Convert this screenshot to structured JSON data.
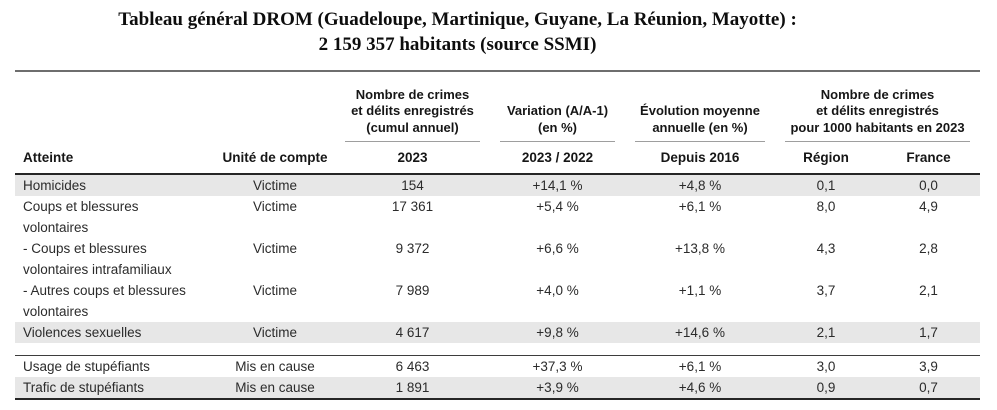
{
  "title": {
    "line1": "Tableau général DROM (Guadeloupe, Martinique, Guyane, La Réunion, Mayotte) :",
    "line2": "2 159 357 habitants (source SSMI)"
  },
  "table": {
    "group_headers": {
      "registered": "Nombre de crimes\net délits enregistrés\n(cumul annuel)",
      "variation": "Variation (A/A-1)\n(en %)",
      "evolution": "Évolution moyenne\nannuelle (en %)",
      "per_1000": "Nombre de crimes\net délits enregistrés\npour 1000 habitants en 2023"
    },
    "columns": {
      "atteinte": "Atteinte",
      "unite": "Unité de compte",
      "year": "2023",
      "variation": "2023 / 2022",
      "evolution": "Depuis 2016",
      "region": "Région",
      "france": "France"
    },
    "rows": [
      {
        "atteinte": "Homicides",
        "unite": "Victime",
        "count_2023": "154",
        "variation": "+14,1 %",
        "evolution": "+4,8 %",
        "region": "0,1",
        "france": "0,0"
      },
      {
        "atteinte": "Coups et blessures volontaires",
        "unite": "Victime",
        "count_2023": "17 361",
        "variation": "+5,4 %",
        "evolution": "+6,1 %",
        "region": "8,0",
        "france": "4,9"
      },
      {
        "atteinte": "- Coups et blessures volontaires intrafamiliaux",
        "unite": "Victime",
        "count_2023": "9 372",
        "variation": "+6,6 %",
        "evolution": "+13,8 %",
        "region": "4,3",
        "france": "2,8"
      },
      {
        "atteinte": "- Autres coups et blessures volontaires",
        "unite": "Victime",
        "count_2023": "7 989",
        "variation": "+4,0 %",
        "evolution": "+1,1 %",
        "region": "3,7",
        "france": "2,1"
      },
      {
        "atteinte": "Violences sexuelles",
        "unite": "Victime",
        "count_2023": "4 617",
        "variation": "+9,8 %",
        "evolution": "+14,6 %",
        "region": "2,1",
        "france": "1,7"
      },
      {
        "atteinte": "Usage de stupéfiants",
        "unite": "Mis en cause",
        "count_2023": "6 463",
        "variation": "+37,3 %",
        "evolution": "+6,1 %",
        "region": "3,0",
        "france": "3,9"
      },
      {
        "atteinte": "Trafic de stupéfiants",
        "unite": "Mis en cause",
        "count_2023": "1 891",
        "variation": "+3,9 %",
        "evolution": "+4,6 %",
        "region": "0,9",
        "france": "0,7"
      }
    ]
  },
  "colors": {
    "row_shade": "#e7e7e7",
    "rule_dark": "#262626",
    "rule_gray": "#9e9e9e",
    "text": "#2b2b2b"
  }
}
